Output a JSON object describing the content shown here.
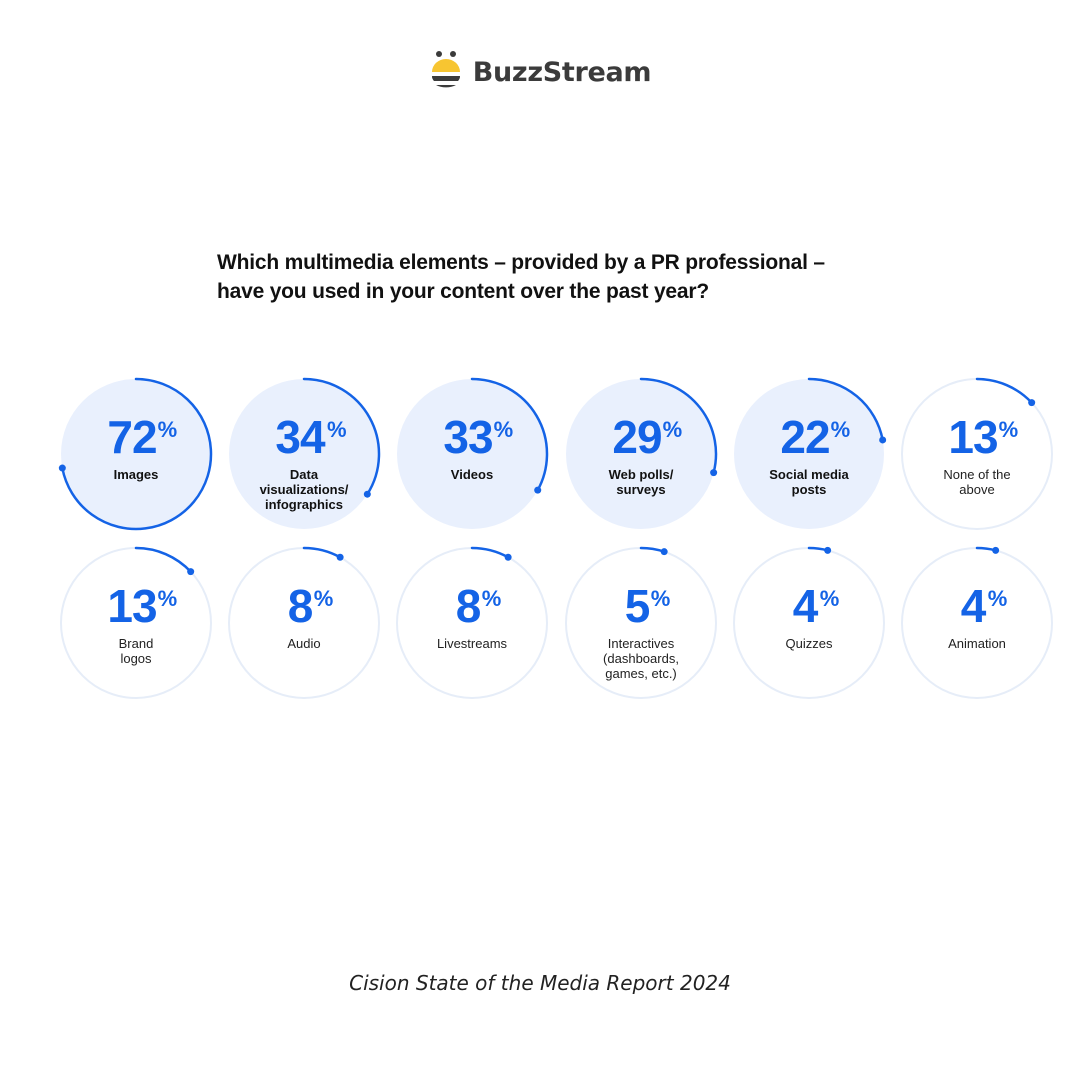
{
  "header": {
    "brand": "BuzzStream"
  },
  "question": {
    "line1": "Which multimedia elements – provided by a PR professional –",
    "line2": "have you used in your content over the past year?"
  },
  "source": "Cision State of the Media Report 2024",
  "colors": {
    "accent": "#1463e6",
    "highlight_fill": "#e9f0fd",
    "ring": "#e6edf8",
    "text": "#111111",
    "label_bold": "#111111",
    "label_regular": "#222222",
    "logo_yellow": "#f7c531",
    "logo_dark": "#3b3b3b"
  },
  "chart_data": {
    "type": "radial-progress",
    "unit": "%",
    "highlighted_count": 5,
    "items": [
      {
        "label": [
          "Images"
        ],
        "value": 72
      },
      {
        "label": [
          "Data",
          "visualizations/",
          "infographics"
        ],
        "value": 34
      },
      {
        "label": [
          "Videos"
        ],
        "value": 33
      },
      {
        "label": [
          "Web polls/",
          "surveys"
        ],
        "value": 29
      },
      {
        "label": [
          "Social media",
          "posts"
        ],
        "value": 22
      },
      {
        "label": [
          "None of the",
          "above"
        ],
        "value": 13
      },
      {
        "label": [
          "Brand",
          "logos"
        ],
        "value": 13
      },
      {
        "label": [
          "Audio"
        ],
        "value": 8
      },
      {
        "label": [
          "Livestreams"
        ],
        "value": 8
      },
      {
        "label": [
          "Interactives",
          "(dashboards,",
          "games, etc.)"
        ],
        "value": 5
      },
      {
        "label": [
          "Quizzes"
        ],
        "value": 4
      },
      {
        "label": [
          "Animation"
        ],
        "value": 4
      }
    ]
  }
}
